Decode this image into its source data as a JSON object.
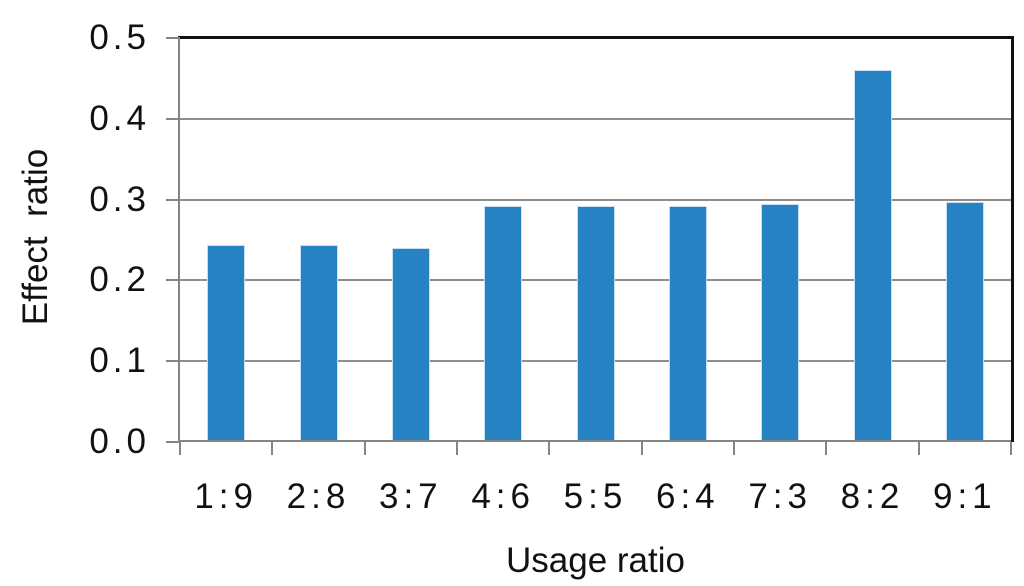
{
  "chart_data": {
    "type": "bar",
    "title": "",
    "categories": [
      "1:9",
      "2:8",
      "3:7",
      "4:6",
      "5:5",
      "6:4",
      "7:3",
      "8:2",
      "9:1"
    ],
    "values": [
      0.244,
      0.244,
      0.24,
      0.292,
      0.292,
      0.292,
      0.295,
      0.461,
      0.297
    ],
    "xlabel": "Usage ratio",
    "ylabel": "Effect  ratio",
    "ylim": [
      0,
      0.5
    ],
    "yticks": [
      0.0,
      0.1,
      0.2,
      0.3,
      0.4,
      0.5
    ],
    "ytick_decimals": 1,
    "grid": true,
    "legend": null,
    "colors": {
      "bar_fill": "#2782C3",
      "bar_border": "#C9DEF0",
      "gridline": "#8E8E8E",
      "axis": "#858585",
      "frame": "#111111",
      "text": "#111111"
    }
  }
}
